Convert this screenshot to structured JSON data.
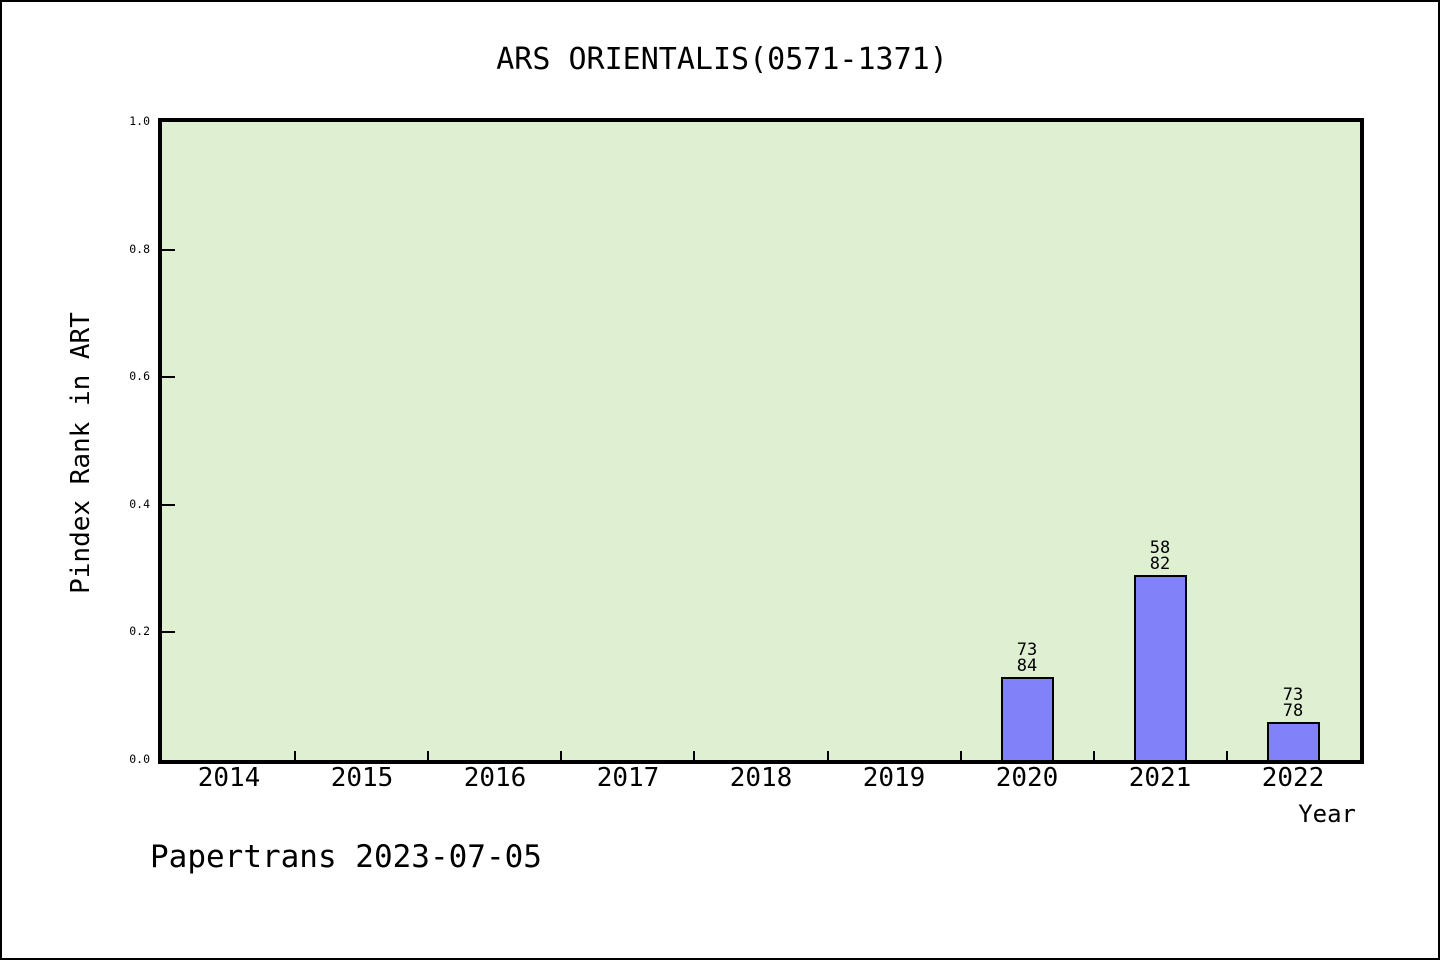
{
  "chart_data": {
    "type": "bar",
    "title": "ARS ORIENTALIS(0571-1371)",
    "xlabel": "Year",
    "ylabel": "Pindex Rank in ART",
    "categories": [
      "2014",
      "2015",
      "2016",
      "2017",
      "2018",
      "2019",
      "2020",
      "2021",
      "2022"
    ],
    "values": [
      0,
      0,
      0,
      0,
      0,
      0,
      0.13,
      0.29,
      0.06
    ],
    "bar_labels": [
      null,
      null,
      null,
      null,
      null,
      null,
      [
        "73",
        "84"
      ],
      [
        "58",
        "82"
      ],
      [
        "73",
        "78"
      ]
    ],
    "ylim": [
      0,
      1
    ],
    "yticks": [
      "0.0",
      "0.2",
      "0.4",
      "0.6",
      "0.8",
      "1.0"
    ],
    "grid": "off",
    "legend": "none",
    "plot_bg_color": "#dfefd2",
    "bar_color": "#8181f9",
    "bar_edge_color": "#000000"
  },
  "footer": {
    "text": "Papertrans 2023-07-05"
  }
}
